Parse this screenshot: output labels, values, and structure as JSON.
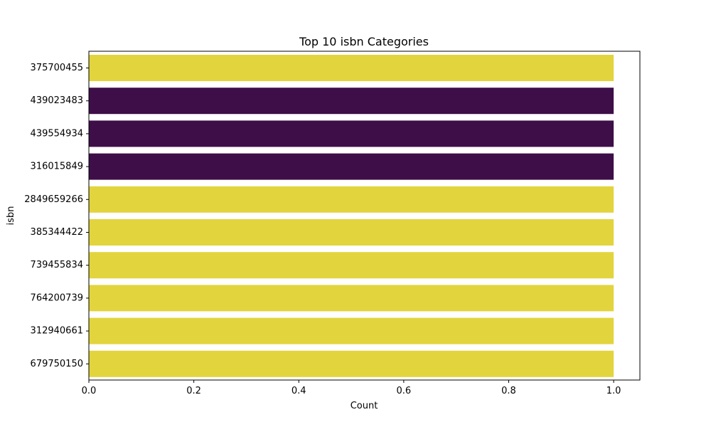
{
  "chart_data": {
    "type": "bar",
    "orientation": "horizontal",
    "title": "Top 10 isbn Categories",
    "xlabel": "Count",
    "ylabel": "isbn",
    "xlim": [
      0,
      1.05
    ],
    "x_ticks": [
      "0.0",
      "0.2",
      "0.4",
      "0.6",
      "0.8",
      "1.0"
    ],
    "categories": [
      "375700455",
      "439023483",
      "439554934",
      "316015849",
      "2849659266",
      "385344422",
      "739455834",
      "764200739",
      "312940661",
      "679750150"
    ],
    "values": [
      1,
      1,
      1,
      1,
      1,
      1,
      1,
      1,
      1,
      1
    ],
    "bar_colors": [
      "#e2d43d",
      "#3e0e48",
      "#3e0e48",
      "#3e0e48",
      "#e2d43d",
      "#e2d43d",
      "#e2d43d",
      "#e2d43d",
      "#e2d43d",
      "#e2d43d"
    ],
    "grid": false,
    "legend": "none"
  }
}
